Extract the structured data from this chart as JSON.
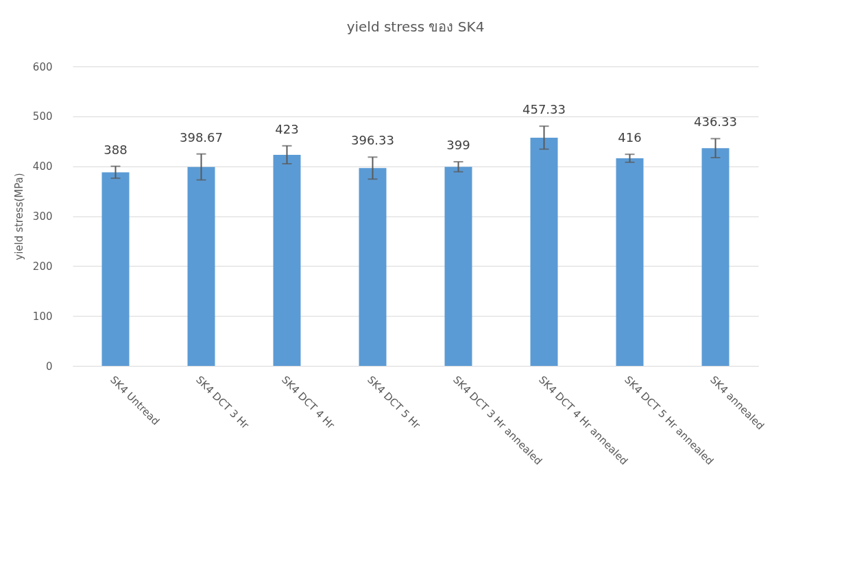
{
  "chart_data": {
    "type": "bar",
    "title": "yield stress ของ SK4",
    "ylabel": "yield stress(MPa)",
    "categories": [
      "SK4  Untread",
      "SK4  DCT 3 Hr",
      "SK4  DCT 4 Hr",
      "SK4  DCT 5 Hr",
      "SK4  DCT 3 Hr annealed",
      "SK4  DCT 4 Hr annealed",
      "SK4  DCT 5 Hr annealed",
      "SK4  annealed"
    ],
    "values": [
      388,
      398.67,
      423,
      396.33,
      399,
      457.33,
      416,
      436.33
    ],
    "errors": [
      12,
      26,
      18,
      22,
      10,
      23,
      8,
      19
    ],
    "color": "#5b9bd5",
    "data_labels": true,
    "ylim": [
      0,
      600
    ],
    "yticks": [
      0,
      100,
      200,
      300,
      400,
      500,
      600
    ],
    "grid": "y"
  }
}
